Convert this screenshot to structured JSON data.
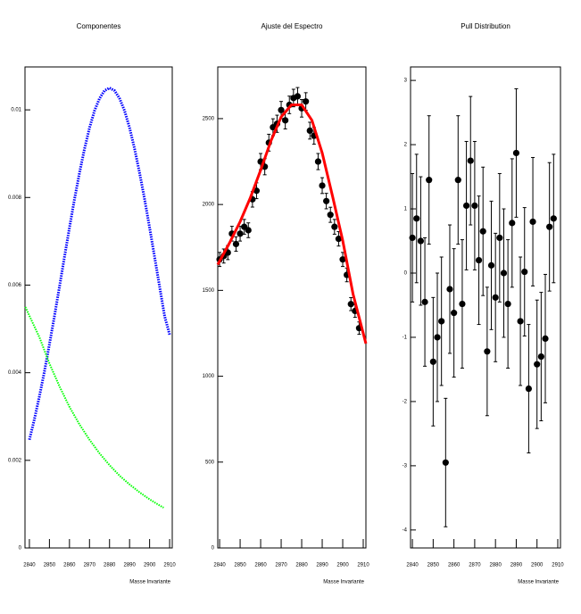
{
  "chart_data": [
    {
      "type": "line",
      "title": "Componentes",
      "xlabel": "Masse Invariante",
      "xlim": [
        2837.8,
        2911.3
      ],
      "xticks": [
        2840,
        2850,
        2860,
        2870,
        2880,
        2890,
        2900,
        2910
      ],
      "ylim": [
        0,
        0.01098
      ],
      "yticks": [
        0,
        0.002,
        0.004,
        0.006,
        0.008,
        0.01
      ],
      "series": [
        {
          "color": "#0000ff",
          "style": "dotted",
          "x": [
            2840,
            2842.5,
            2845,
            2847.5,
            2850,
            2852.5,
            2855,
            2857.5,
            2860,
            2862.5,
            2865,
            2867.5,
            2870,
            2872.5,
            2875,
            2877.5,
            2880,
            2882.5,
            2885,
            2887.5,
            2890,
            2892.5,
            2895,
            2897.5,
            2900,
            2902.5,
            2905,
            2907.5,
            2910
          ],
          "values": [
            0.00247,
            0.00294,
            0.00346,
            0.00403,
            0.00465,
            0.00529,
            0.00596,
            0.00664,
            0.00731,
            0.00796,
            0.00856,
            0.00911,
            0.00959,
            0.00998,
            0.01026,
            0.01044,
            0.0105,
            0.01044,
            0.01026,
            0.00998,
            0.00959,
            0.00911,
            0.00856,
            0.00796,
            0.00731,
            0.00664,
            0.00596,
            0.00529,
            0.00487
          ]
        },
        {
          "color": "#00ff00",
          "style": "dotted",
          "x": [
            2838,
            2840,
            2845,
            2850,
            2855,
            2860,
            2865,
            2870,
            2875,
            2880,
            2885,
            2890,
            2895,
            2900,
            2905,
            2907
          ],
          "values": [
            0.0055,
            0.0053,
            0.00481,
            0.00421,
            0.00369,
            0.00322,
            0.00282,
            0.00247,
            0.00216,
            0.00189,
            0.00165,
            0.00145,
            0.00127,
            0.00111,
            0.00097,
            0.00092
          ]
        }
      ]
    },
    {
      "type": "scatter",
      "title": "Ajuste del Espectro",
      "xlabel": "Masse Invariante",
      "xlim": [
        2839.1,
        2911.3
      ],
      "xticks": [
        2840,
        2850,
        2860,
        2870,
        2880,
        2890,
        2900,
        2910
      ],
      "ylim": [
        0,
        2801
      ],
      "yticks": [
        0,
        500,
        1000,
        1500,
        2000,
        2500
      ],
      "series": [
        {
          "color": "#000000",
          "style": "markers",
          "x": [
            2840,
            2842,
            2844,
            2846,
            2848,
            2850,
            2852,
            2854,
            2856,
            2858,
            2860,
            2862,
            2864,
            2866,
            2868,
            2870,
            2872,
            2874,
            2876,
            2878,
            2880,
            2882,
            2884,
            2886,
            2888,
            2890,
            2892,
            2894,
            2896,
            2898,
            2900,
            2902,
            2904,
            2906,
            2908
          ],
          "values": [
            1680,
            1700,
            1720,
            1830,
            1770,
            1830,
            1870,
            1850,
            2030,
            2080,
            2250,
            2220,
            2360,
            2450,
            2470,
            2550,
            2490,
            2580,
            2620,
            2630,
            2560,
            2600,
            2430,
            2400,
            2250,
            2110,
            2020,
            1940,
            1870,
            1800,
            1680,
            1590,
            1420,
            1380,
            1280
          ],
          "errors": [
            41,
            41,
            41,
            43,
            42,
            43,
            43,
            43,
            45,
            46,
            47,
            47,
            49,
            49,
            50,
            50,
            50,
            51,
            51,
            51,
            51,
            51,
            49,
            49,
            47,
            46,
            45,
            44,
            43,
            42,
            41,
            40,
            38,
            37,
            36
          ]
        },
        {
          "color": "#ff0000",
          "style": "line",
          "x": [
            2839.1,
            2845,
            2850,
            2855,
            2860,
            2865,
            2870,
            2875,
            2880,
            2885,
            2890,
            2895,
            2900,
            2905,
            2911.3
          ],
          "values": [
            1650,
            1780,
            1900,
            2040,
            2200,
            2370,
            2510,
            2580,
            2580,
            2490,
            2300,
            2050,
            1790,
            1480,
            1190
          ]
        }
      ]
    },
    {
      "type": "scatter",
      "title": "Pull Distribution",
      "xlabel": "Masse Invariante",
      "xlim": [
        2839.1,
        2911.3
      ],
      "xticks": [
        2840,
        2850,
        2860,
        2870,
        2880,
        2890,
        2900,
        2910
      ],
      "ylim": [
        -4.28,
        3.21
      ],
      "yticks": [
        -4,
        -3,
        -2,
        -1,
        0,
        1,
        2,
        3
      ],
      "series": [
        {
          "color": "#000000",
          "style": "markers",
          "x": [
            2840,
            2842,
            2844,
            2846,
            2848,
            2850,
            2852,
            2854,
            2856,
            2858,
            2860,
            2862,
            2864,
            2866,
            2868,
            2870,
            2872,
            2874,
            2876,
            2878,
            2880,
            2882,
            2884,
            2886,
            2888,
            2890,
            2892,
            2894,
            2896,
            2898,
            2900,
            2902,
            2904,
            2906,
            2908
          ],
          "values": [
            0.55,
            0.85,
            0.5,
            -0.45,
            1.45,
            -1.38,
            -1.0,
            -0.75,
            -2.95,
            -0.25,
            -0.62,
            1.45,
            -0.48,
            1.05,
            1.75,
            1.05,
            0.2,
            0.65,
            -1.22,
            0.12,
            -0.38,
            0.55,
            0.0,
            -0.48,
            0.78,
            1.87,
            -0.75,
            0.02,
            -1.8,
            0.8,
            -1.42,
            -1.3,
            -1.02,
            0.72,
            0.85
          ],
          "errors": [
            1,
            1,
            1,
            1,
            1,
            1,
            1,
            1,
            1,
            1,
            1,
            1,
            1,
            1,
            1,
            1,
            1,
            1,
            1,
            1,
            1,
            1,
            1,
            1,
            1,
            1,
            1,
            1,
            1,
            1,
            1,
            1,
            1,
            1,
            1
          ]
        }
      ]
    }
  ]
}
